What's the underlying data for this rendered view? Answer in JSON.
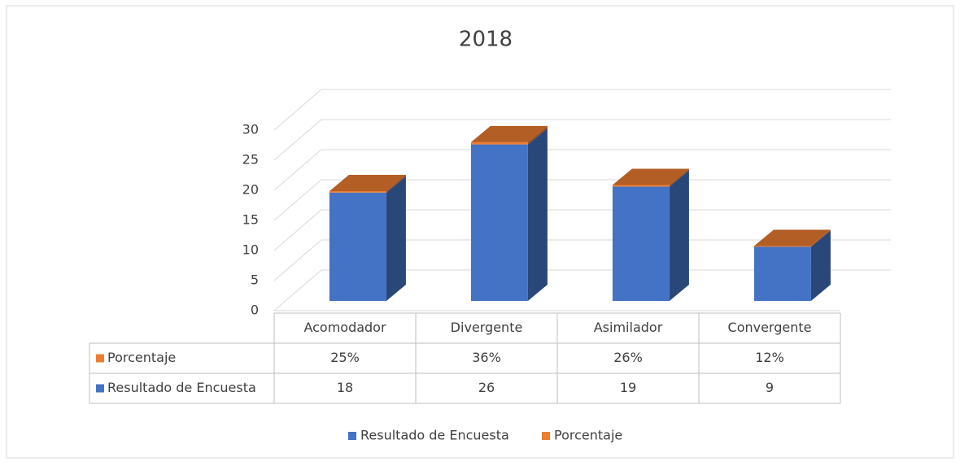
{
  "chart_data": {
    "type": "bar3d_stacked",
    "title": "2018",
    "categories": [
      "Acomodador",
      "Divergente",
      "Asimilador",
      "Convergente"
    ],
    "series": [
      {
        "name": "Resultado de Encuesta",
        "color": "#4472c4",
        "values": [
          18,
          26,
          19,
          9
        ]
      },
      {
        "name": "Porcentaje",
        "color": "#ed7d31",
        "values": [
          0.25,
          0.36,
          0.26,
          0.12
        ],
        "value_labels": [
          "25%",
          "36%",
          "26%",
          "12%"
        ]
      }
    ],
    "ylim": [
      0,
      30
    ],
    "yticks": [
      0,
      5,
      10,
      15,
      20,
      25,
      30
    ],
    "grid": true,
    "legend": "bottom",
    "data_table": true
  }
}
